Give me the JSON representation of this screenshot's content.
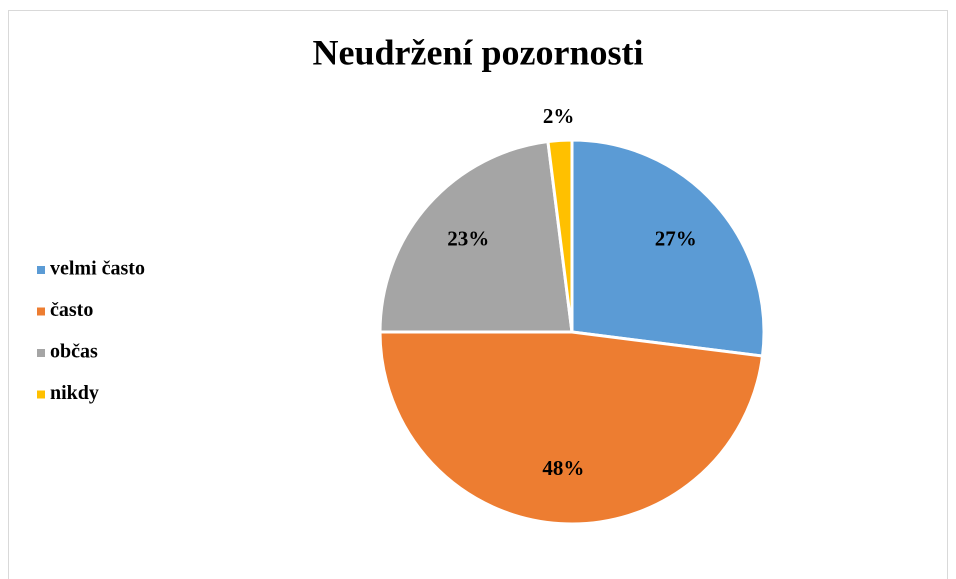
{
  "chart_data": {
    "type": "pie",
    "title": "Neudržení pozornosti",
    "categories": [
      "velmi často",
      "často",
      "občas",
      "nikdy"
    ],
    "values": [
      27,
      48,
      23,
      2
    ],
    "value_labels": [
      "27%",
      "48%",
      "23%",
      "2%"
    ],
    "colors": [
      "#5b9bd5",
      "#ed7d31",
      "#a5a5a5",
      "#ffc000"
    ],
    "legend": "left"
  }
}
